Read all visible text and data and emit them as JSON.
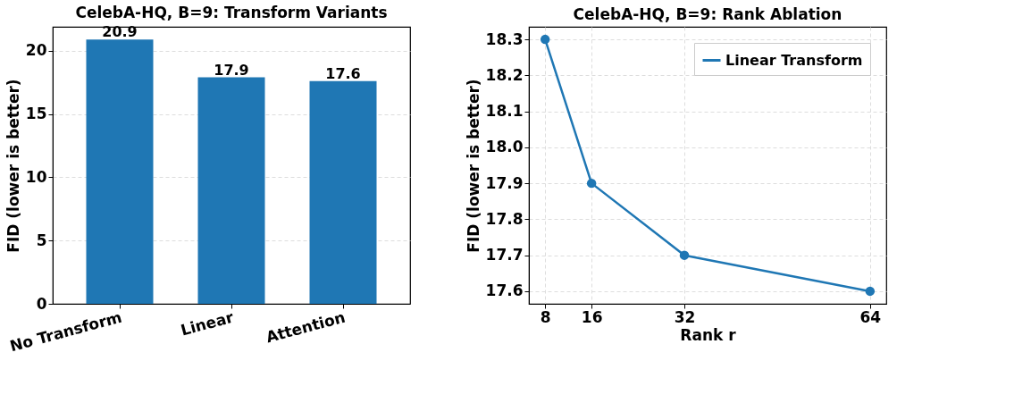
{
  "chart_data": [
    {
      "type": "bar",
      "title": "CelebA-HQ, B=9: Transform Variants",
      "ylabel": "FID (lower is better)",
      "categories": [
        "No Transform",
        "Linear",
        "Attention"
      ],
      "values": [
        20.9,
        17.9,
        17.6
      ],
      "color": "#1f77b4",
      "ylim": [
        0,
        21.9
      ],
      "yticks": [
        0,
        5,
        10,
        15,
        20
      ],
      "grid": "y",
      "data_labels": true
    },
    {
      "type": "line",
      "title": "CelebA-HQ, B=9: Rank Ablation",
      "xlabel": "Rank r",
      "ylabel": "FID (lower is better)",
      "x": [
        8,
        16,
        32,
        64
      ],
      "series": [
        {
          "name": "Linear Transform",
          "color": "#1f77b4",
          "values": [
            18.3,
            17.9,
            17.7,
            17.6
          ]
        }
      ],
      "xlim": [
        5.2,
        66.8
      ],
      "xticks": [
        8,
        16,
        32,
        64
      ],
      "ylim": [
        17.565,
        18.335
      ],
      "yticks": [
        17.6,
        17.7,
        17.8,
        17.9,
        {
          "value": 18,
          "label": "18.0"
        },
        18.1,
        18.2,
        18.3
      ],
      "grid": true,
      "legend": "top right",
      "marker": "circle",
      "line_style": "solid"
    }
  ]
}
